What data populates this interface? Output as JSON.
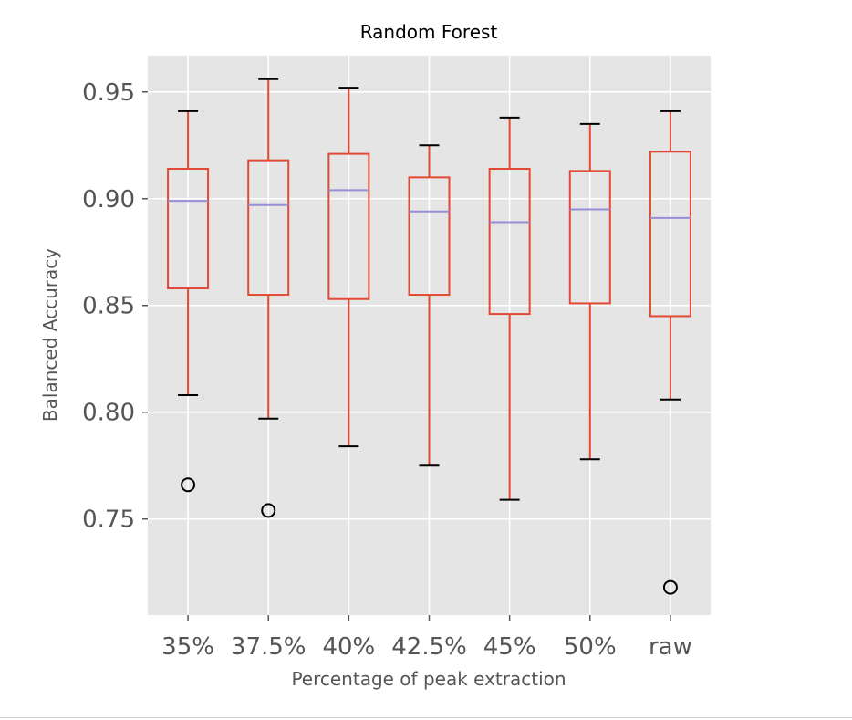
{
  "chart_data": {
    "type": "box",
    "title": "Random Forest",
    "xlabel": "Percentage of peak extraction",
    "ylabel": "Balanced Accuracy",
    "ylim": [
      0.705,
      0.967
    ],
    "yticks": [
      0.75,
      0.8,
      0.85,
      0.9,
      0.95
    ],
    "ytick_labels": [
      "0.75",
      "0.80",
      "0.85",
      "0.90",
      "0.95"
    ],
    "grid": true,
    "categories": [
      "35%",
      "37.5%",
      "40%",
      "42.5%",
      "45%",
      "50%",
      "raw"
    ],
    "boxes": [
      {
        "whisker_low": 0.808,
        "q1": 0.858,
        "median": 0.899,
        "q3": 0.914,
        "whisker_high": 0.941,
        "outliers": [
          0.766
        ]
      },
      {
        "whisker_low": 0.797,
        "q1": 0.855,
        "median": 0.897,
        "q3": 0.918,
        "whisker_high": 0.956,
        "outliers": [
          0.754
        ]
      },
      {
        "whisker_low": 0.784,
        "q1": 0.853,
        "median": 0.904,
        "q3": 0.921,
        "whisker_high": 0.952,
        "outliers": []
      },
      {
        "whisker_low": 0.775,
        "q1": 0.855,
        "median": 0.894,
        "q3": 0.91,
        "whisker_high": 0.925,
        "outliers": []
      },
      {
        "whisker_low": 0.759,
        "q1": 0.846,
        "median": 0.889,
        "q3": 0.914,
        "whisker_high": 0.938,
        "outliers": []
      },
      {
        "whisker_low": 0.778,
        "q1": 0.851,
        "median": 0.895,
        "q3": 0.913,
        "whisker_high": 0.935,
        "outliers": []
      },
      {
        "whisker_low": 0.806,
        "q1": 0.845,
        "median": 0.891,
        "q3": 0.922,
        "whisker_high": 0.941,
        "outliers": [
          0.718
        ]
      }
    ],
    "colors": {
      "background": "#e5e5e5",
      "grid": "#ffffff",
      "box": "#e24a33",
      "median": "#988ed5",
      "caps": "#000000",
      "outlier": "#000000"
    }
  }
}
